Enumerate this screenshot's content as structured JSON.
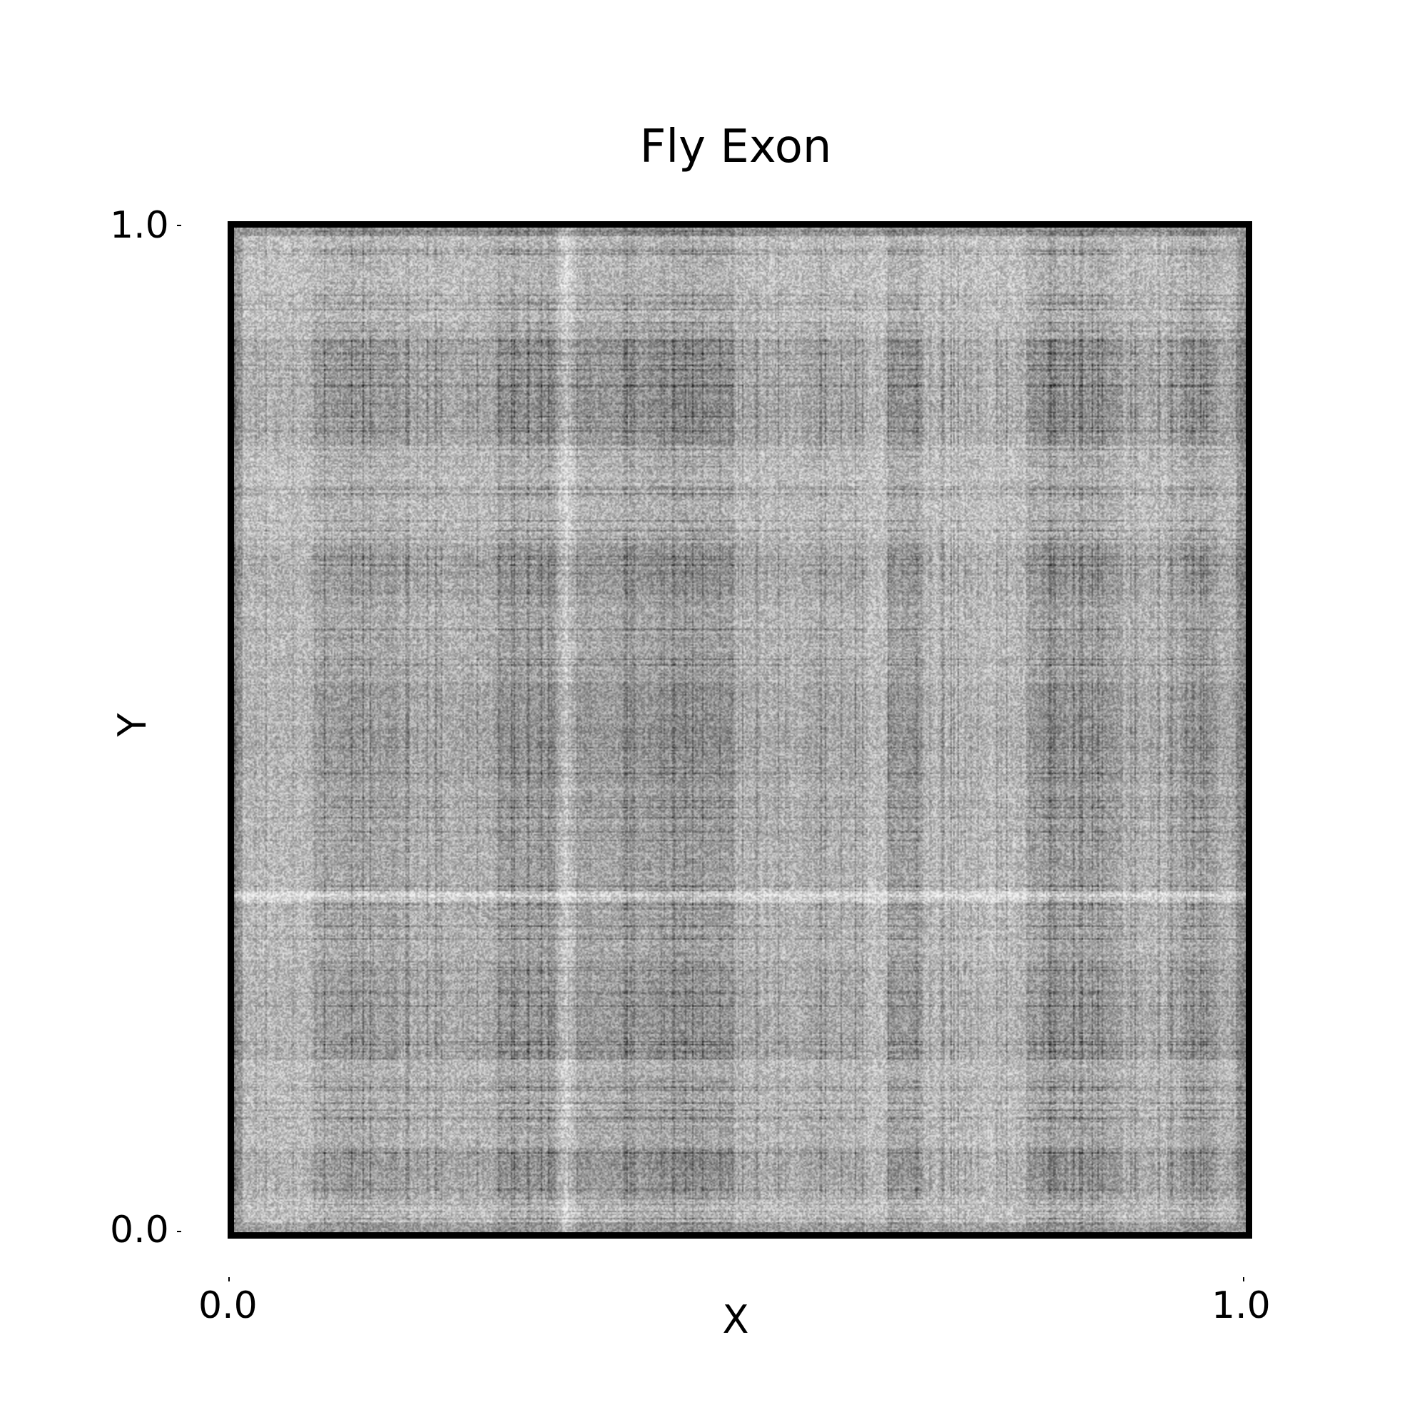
{
  "chart_data": {
    "type": "heatmap",
    "title": "Fly Exon",
    "xlabel": "X",
    "ylabel": "Y",
    "xlim": [
      0.0,
      1.0
    ],
    "ylim": [
      0.0,
      1.0
    ],
    "x_ticks": [
      "0.0",
      "1.0"
    ],
    "y_ticks": [
      "0.0",
      "1.0"
    ],
    "colormap": "grayscale",
    "grid": false,
    "legend": "none"
  }
}
